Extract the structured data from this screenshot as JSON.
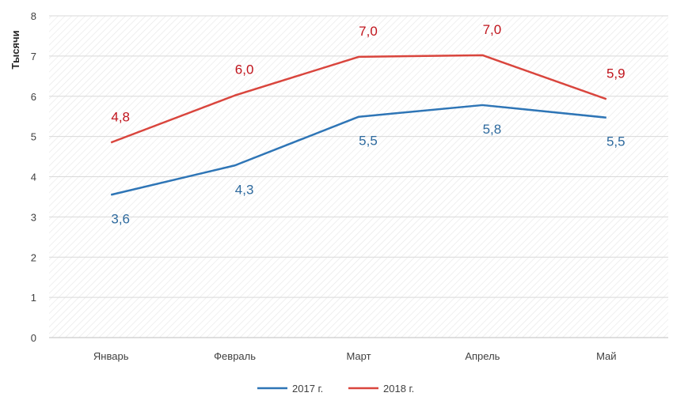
{
  "chart_data": {
    "type": "line",
    "title": "",
    "xlabel": "",
    "ylabel": "Тысячи",
    "ylim": [
      0,
      8
    ],
    "yticks": [
      "0",
      "1",
      "2",
      "3",
      "4",
      "5",
      "6",
      "7",
      "8"
    ],
    "categories": [
      "Январь",
      "Февраль",
      "Март",
      "Апрель",
      "Май"
    ],
    "grid": true,
    "legend": "bottom",
    "series": [
      {
        "name": "2017 г.",
        "color": "#2e75b6",
        "label_color": "#2e6a9e",
        "values": [
          3.55,
          4.28,
          5.49,
          5.78,
          5.47
        ],
        "labels": [
          "3,6",
          "4,3",
          "5,5",
          "5,8",
          "5,5"
        ],
        "label_position": "below"
      },
      {
        "name": "2018 г.",
        "color": "#d9453d",
        "label_color": "#c0141c",
        "values": [
          4.85,
          6.02,
          6.98,
          7.02,
          5.93
        ],
        "labels": [
          "4,8",
          "6,0",
          "7,0",
          "7,0",
          "5,9"
        ],
        "label_position": "above"
      }
    ]
  }
}
